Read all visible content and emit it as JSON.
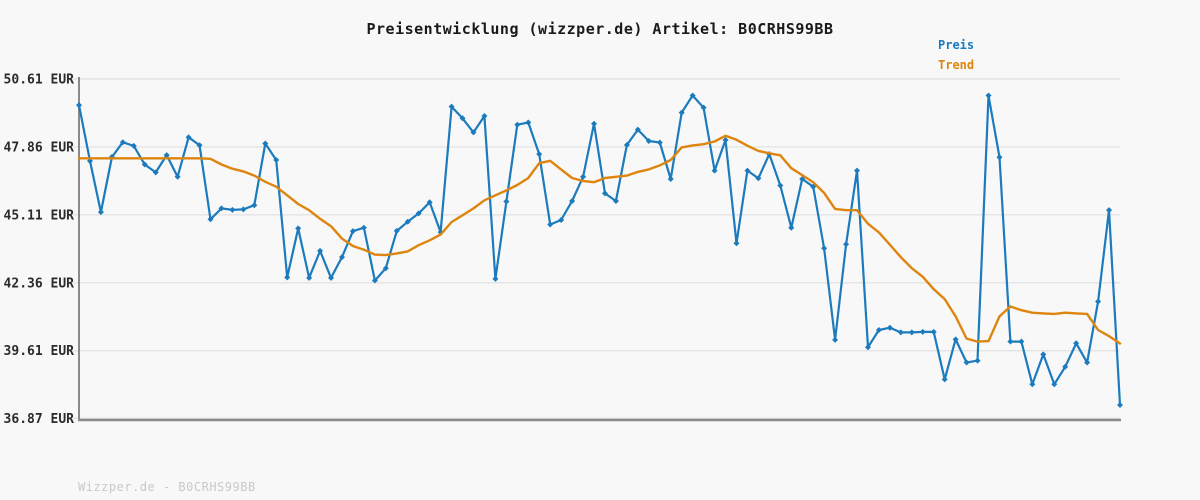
{
  "title": "Preisentwicklung (wizzper.de) Artikel: B0CRHS99BB",
  "watermark": "Wizzper.de - B0CRHS99BB",
  "legend": {
    "preis_label": "Preis",
    "trend_label": "Trend"
  },
  "colors": {
    "preis": "#1b7bbd",
    "trend": "#dd850e",
    "grid": "#e4e4e4",
    "spine": "#8a8a8a",
    "tick_text": "#2b2b2b",
    "background": "#f8f8f8",
    "watermark_text": "#c9c9c9"
  },
  "chart_data": {
    "type": "line",
    "title": "Preisentwicklung (wizzper.de) Artikel: B0CRHS99BB",
    "xlabel": "",
    "ylabel": "",
    "y_ticks": [
      50.61,
      47.86,
      45.11,
      42.36,
      39.61,
      36.87
    ],
    "y_tick_labels": [
      "50.61 EUR",
      "47.86 EUR",
      "45.11 EUR",
      "42.36 EUR",
      "39.61 EUR",
      "36.87 EUR"
    ],
    "ylim": [
      36.87,
      50.61
    ],
    "grid": true,
    "legend_position": "top-right",
    "x_axis_note": "time series, no x tick labels shown",
    "series": [
      {
        "name": "Preis",
        "color": "#1b7bbd",
        "markers": true,
        "values": [
          49.55,
          47.29,
          45.22,
          47.45,
          48.05,
          47.9,
          47.15,
          46.83,
          47.53,
          46.65,
          48.25,
          47.93,
          44.93,
          45.37,
          45.31,
          45.33,
          45.5,
          48.0,
          47.33,
          42.58,
          44.56,
          42.56,
          43.65,
          42.56,
          43.4,
          44.45,
          44.59,
          42.45,
          42.95,
          44.46,
          44.83,
          45.17,
          45.62,
          44.41,
          49.49,
          49.02,
          48.45,
          49.11,
          42.52,
          45.65,
          48.76,
          48.85,
          47.57,
          44.72,
          44.9,
          45.67,
          46.65,
          48.8,
          45.98,
          45.67,
          47.94,
          48.56,
          48.1,
          48.04,
          46.56,
          49.25,
          49.94,
          49.45,
          46.9,
          48.14,
          43.96,
          46.9,
          46.59,
          47.57,
          46.3,
          44.59,
          46.56,
          46.25,
          43.76,
          40.05,
          43.92,
          46.9,
          39.75,
          40.45,
          40.54,
          40.35,
          40.35,
          40.37,
          40.37,
          38.45,
          40.07,
          39.13,
          39.21,
          49.94,
          47.44,
          39.98,
          39.98,
          38.25,
          39.46,
          38.25,
          38.96,
          39.91,
          39.13,
          41.6,
          45.3,
          37.41
        ]
      },
      {
        "name": "Trend",
        "color": "#dd850e",
        "markers": false,
        "values": [
          47.4,
          47.4,
          47.4,
          47.4,
          47.4,
          47.4,
          47.4,
          47.4,
          47.4,
          47.4,
          47.4,
          47.4,
          47.38,
          47.15,
          46.98,
          46.87,
          46.7,
          46.45,
          46.25,
          45.9,
          45.55,
          45.3,
          44.95,
          44.65,
          44.15,
          43.85,
          43.7,
          43.5,
          43.48,
          43.55,
          43.63,
          43.88,
          44.08,
          44.31,
          44.82,
          45.09,
          45.37,
          45.7,
          45.9,
          46.1,
          46.32,
          46.6,
          47.2,
          47.3,
          46.95,
          46.6,
          46.48,
          46.43,
          46.6,
          46.65,
          46.7,
          46.85,
          46.95,
          47.11,
          47.33,
          47.84,
          47.92,
          47.97,
          48.08,
          48.31,
          48.15,
          47.91,
          47.7,
          47.6,
          47.52,
          47.0,
          46.72,
          46.43,
          46.0,
          45.35,
          45.3,
          45.3,
          44.75,
          44.4,
          43.9,
          43.4,
          42.95,
          42.6,
          42.1,
          41.7,
          41.0,
          40.1,
          39.98,
          40.0,
          41.0,
          41.4,
          41.25,
          41.15,
          41.12,
          41.1,
          41.15,
          41.12,
          41.1,
          40.45,
          40.2,
          39.9
        ]
      }
    ]
  }
}
